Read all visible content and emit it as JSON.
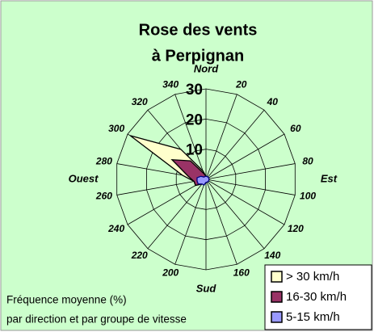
{
  "chart_data": {
    "type": "radar",
    "title": "Rose des vents",
    "subtitle": "à Perpignan",
    "categories": [
      null,
      "20",
      "40",
      "60",
      "80",
      "100",
      "120",
      "140",
      "160",
      null,
      "200",
      "220",
      "240",
      "260",
      "280",
      "300",
      "320",
      "340"
    ],
    "cardinals": [
      "Nord",
      "Est",
      "Sud",
      "Ouest"
    ],
    "rlim": [
      0,
      30
    ],
    "rticks": [
      10,
      20,
      30
    ],
    "grid": true,
    "stacked": true,
    "series": [
      {
        "name": "> 30 km/h",
        "color": "#ffffcc",
        "values": [
          0,
          0,
          0,
          0,
          0,
          0,
          0,
          0,
          0,
          0,
          0,
          0,
          0,
          0,
          2,
          16,
          5,
          1
        ]
      },
      {
        "name": "16-30 km/h",
        "color": "#993366",
        "values": [
          0,
          0,
          0,
          0,
          0,
          0,
          0,
          0,
          0,
          0,
          0,
          0,
          1,
          1,
          3,
          11,
          7,
          1
        ]
      },
      {
        "name": "5-15 km/h",
        "color": "#9999ff",
        "values": [
          1,
          1,
          1,
          1,
          1,
          1,
          1,
          1,
          1,
          1,
          2,
          2,
          3,
          3,
          3,
          2,
          1,
          1
        ]
      }
    ],
    "notes": [
      "Fréquence moyenne (%)",
      "par direction et  par groupe de vitesse"
    ],
    "legend": "bottom-right"
  }
}
